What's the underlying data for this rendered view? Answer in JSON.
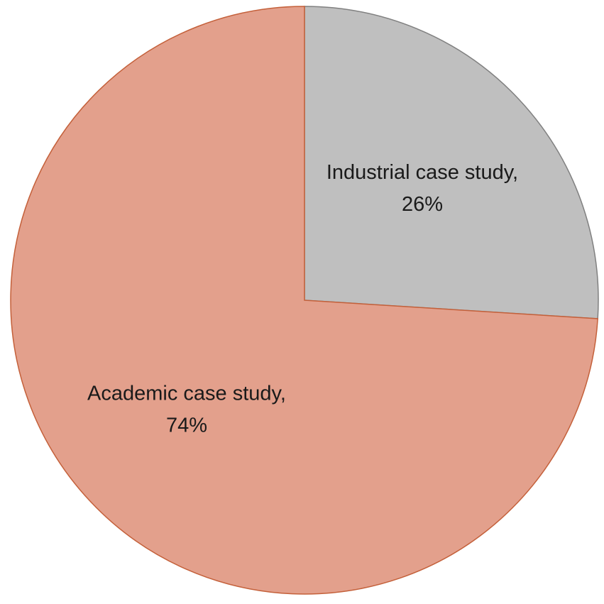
{
  "chart_data": {
    "type": "pie",
    "categories": [
      "Industrial case study,",
      "Academic case study,"
    ],
    "values": [
      26,
      74
    ],
    "value_labels": [
      "26%",
      "74%"
    ],
    "colors": [
      "#bfbfbf",
      "#e3a08c"
    ],
    "edgecolors": [
      "#808080",
      "#c4603a"
    ]
  }
}
